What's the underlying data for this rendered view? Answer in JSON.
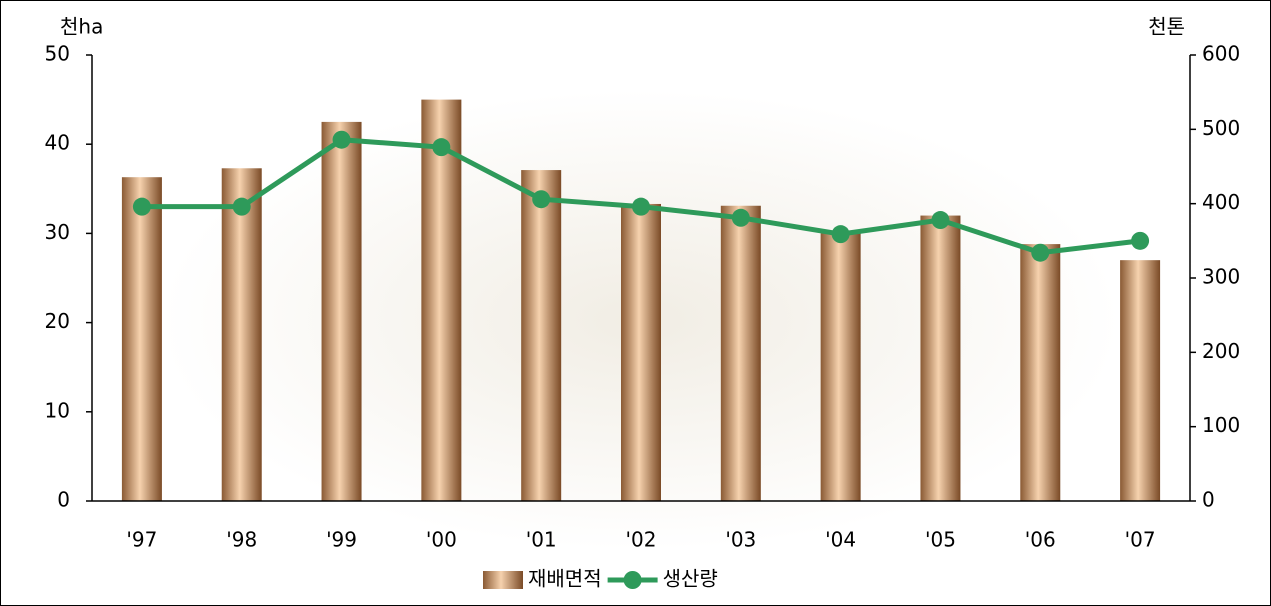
{
  "chart_data": {
    "type": "bar_line",
    "y_label": "천ha",
    "y2_label": "천톤",
    "categories": [
      "'97",
      "'98",
      "'99",
      "'00",
      "'01",
      "'02",
      "'03",
      "'04",
      "'05",
      "'06",
      "'07"
    ],
    "series": [
      {
        "name": "재배면적",
        "type": "bar",
        "color": "#c8905c",
        "values": [
          36.3,
          37.3,
          42.5,
          45.0,
          37.1,
          33.3,
          33.1,
          30.0,
          32.0,
          28.8,
          27.0
        ]
      },
      {
        "name": "생산량",
        "type": "line",
        "axis": "y2",
        "color": "#2e9a5a",
        "values": [
          396,
          396,
          486,
          476,
          406,
          396,
          381,
          359,
          378,
          334,
          350
        ]
      }
    ],
    "ylim": [
      0,
      50
    ],
    "yticks": [
      0,
      10,
      20,
      30,
      40,
      50
    ],
    "y2lim": [
      0,
      600
    ],
    "y2ticks": [
      0,
      100,
      200,
      300,
      400,
      500,
      600
    ],
    "legend": "bottom"
  }
}
